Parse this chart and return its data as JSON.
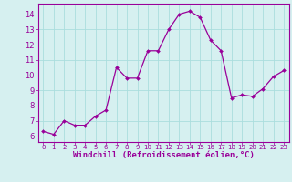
{
  "x": [
    0,
    1,
    2,
    3,
    4,
    5,
    6,
    7,
    8,
    9,
    10,
    11,
    12,
    13,
    14,
    15,
    16,
    17,
    18,
    19,
    20,
    21,
    22,
    23
  ],
  "y": [
    6.3,
    6.1,
    7.0,
    6.7,
    6.7,
    7.3,
    7.7,
    10.5,
    9.8,
    9.8,
    11.6,
    11.6,
    13.0,
    14.0,
    14.2,
    13.8,
    12.3,
    11.6,
    8.5,
    8.7,
    8.6,
    9.1,
    9.9,
    10.3
  ],
  "line_color": "#990099",
  "marker": "D",
  "markersize": 2.0,
  "linewidth": 0.9,
  "bg_color": "#d6f0f0",
  "grid_color": "#aadddd",
  "xlabel": "Windchill (Refroidissement éolien,°C)",
  "xlabel_fontsize": 6.5,
  "ytick_min": 6,
  "ytick_max": 14,
  "ytick_step": 1,
  "xtick_labels": [
    "0",
    "1",
    "2",
    "3",
    "4",
    "5",
    "6",
    "7",
    "8",
    "9",
    "10",
    "11",
    "12",
    "13",
    "14",
    "15",
    "16",
    "17",
    "18",
    "19",
    "20",
    "21",
    "22",
    "23"
  ],
  "ylim": [
    5.6,
    14.7
  ],
  "xlim": [
    -0.5,
    23.5
  ],
  "tick_color": "#990099",
  "label_color": "#990099",
  "spine_color": "#990099"
}
